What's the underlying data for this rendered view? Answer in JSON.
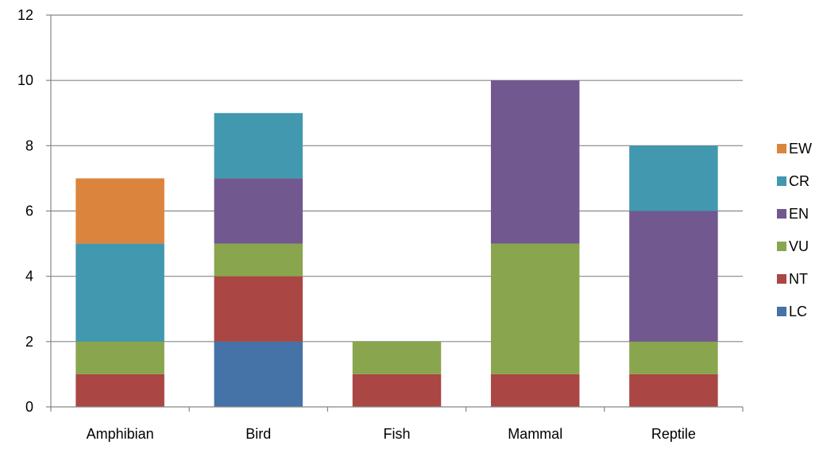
{
  "chart_data": {
    "type": "bar",
    "stacked": true,
    "categories": [
      "Amphibian",
      "Bird",
      "Fish",
      "Mammal",
      "Reptile"
    ],
    "series": [
      {
        "name": "LC",
        "color": "#4572A7",
        "values": [
          0,
          2,
          0,
          0,
          0
        ]
      },
      {
        "name": "NT",
        "color": "#AA4643",
        "values": [
          1,
          2,
          1,
          1,
          1
        ]
      },
      {
        "name": "VU",
        "color": "#89A54E",
        "values": [
          1,
          1,
          1,
          4,
          1
        ]
      },
      {
        "name": "EN",
        "color": "#71588F",
        "values": [
          0,
          2,
          0,
          5,
          4
        ]
      },
      {
        "name": "CR",
        "color": "#4198AF",
        "values": [
          3,
          2,
          0,
          0,
          2
        ]
      },
      {
        "name": "EW",
        "color": "#DB843D",
        "values": [
          2,
          0,
          0,
          0,
          0
        ]
      }
    ],
    "y_ticks": [
      "0",
      "2",
      "4",
      "6",
      "8",
      "10",
      "12"
    ],
    "ylim": [
      0,
      12
    ],
    "grid": true,
    "legend_position": "right"
  }
}
